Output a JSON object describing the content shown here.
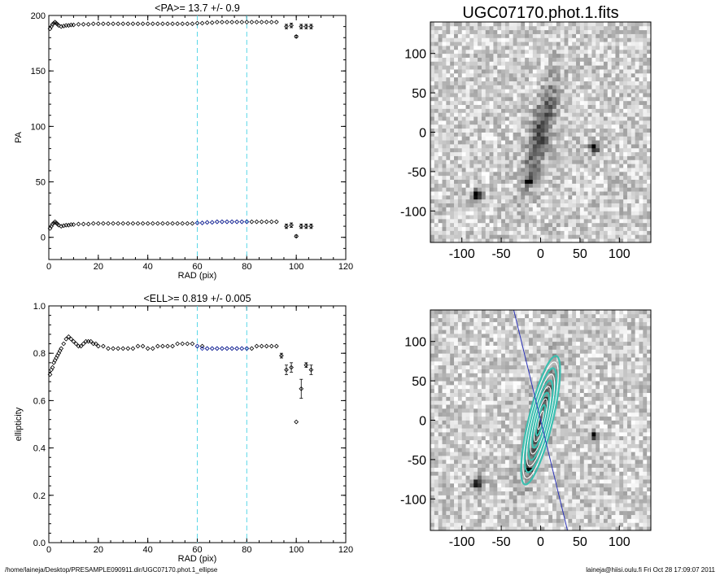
{
  "chart_data": [
    {
      "type": "scatter",
      "title": "<PA>=  13.7 +/-   0.9",
      "xlabel": "RAD (pix)",
      "ylabel": "PA",
      "xlim": [
        0,
        120
      ],
      "ylim": [
        -20,
        200
      ],
      "xticks": [
        0,
        20,
        40,
        60,
        80,
        100,
        120
      ],
      "yticks": [
        0,
        50,
        100,
        150,
        200
      ],
      "fit_range": [
        60,
        80
      ],
      "series": [
        {
          "color": "#000000",
          "x": [
            0.5,
            1,
            1.5,
            2,
            2.5,
            3,
            3.5,
            4,
            5,
            6,
            7,
            8,
            9,
            10,
            12,
            14,
            16,
            18,
            20,
            22,
            24,
            26,
            28,
            30,
            32,
            34,
            36,
            38,
            40,
            42,
            44,
            46,
            48,
            50,
            52,
            54,
            56,
            58,
            60,
            62,
            64,
            66,
            68,
            70,
            72,
            74,
            76,
            78,
            80,
            82,
            84,
            86,
            88,
            90,
            92
          ],
          "y": [
            8,
            10,
            12,
            13,
            14,
            13,
            12,
            11,
            10,
            10.5,
            11,
            11,
            11.5,
            11.5,
            12,
            12,
            12,
            12.5,
            12.5,
            12.5,
            12.5,
            12.5,
            12.5,
            12.5,
            12.5,
            12.5,
            12.5,
            12.5,
            12.5,
            12.5,
            12.5,
            12.5,
            12.5,
            12.5,
            12.5,
            12.5,
            12.5,
            12.5,
            13,
            13,
            13.5,
            13.5,
            14,
            14,
            14,
            14,
            14,
            14,
            14,
            14,
            14,
            14,
            14,
            14,
            14
          ]
        },
        {
          "color": "#000000",
          "x": [
            96,
            98,
            100,
            102,
            104,
            106
          ],
          "y": [
            10,
            11,
            1,
            10,
            10,
            10
          ],
          "err": [
            2,
            2,
            1,
            2,
            2,
            2
          ]
        },
        {
          "color": "#1a2bb0",
          "x": [
            60,
            62,
            64,
            66,
            68,
            70,
            72,
            74,
            76,
            78,
            80
          ],
          "y": [
            13,
            13,
            13.5,
            13.5,
            14,
            14,
            14,
            14,
            14,
            14,
            14
          ]
        },
        {
          "color": "#000000",
          "x": [
            0.5,
            1,
            1.5,
            2,
            2.5,
            3,
            3.5,
            4,
            5,
            6,
            7,
            8,
            9,
            10,
            12,
            14,
            16,
            18,
            20,
            22,
            24,
            26,
            28,
            30,
            32,
            34,
            36,
            38,
            40,
            42,
            44,
            46,
            48,
            50,
            52,
            54,
            56,
            58,
            60,
            62,
            64,
            66,
            68,
            70,
            72,
            74,
            76,
            78,
            80,
            82,
            84,
            86,
            88,
            90,
            92
          ],
          "y": [
            188,
            190,
            192,
            193,
            194,
            193,
            192,
            191,
            190,
            190.5,
            191,
            191,
            191.5,
            191.5,
            192,
            192,
            192,
            192.5,
            192.5,
            192.5,
            192.5,
            192.5,
            192.5,
            192.5,
            192.5,
            192.5,
            192.5,
            192.5,
            192.5,
            192.5,
            192.5,
            192.5,
            192.5,
            192.5,
            192.5,
            192.5,
            192.5,
            192.5,
            193,
            193,
            193.5,
            193.5,
            194,
            194,
            194,
            194,
            194,
            194,
            194,
            194,
            194,
            194,
            194,
            194,
            194
          ]
        },
        {
          "color": "#000000",
          "x": [
            96,
            98,
            100,
            102,
            104,
            106
          ],
          "y": [
            190,
            191,
            181,
            190,
            190,
            190
          ],
          "err": [
            2,
            2,
            1,
            2,
            2,
            2
          ]
        }
      ]
    },
    {
      "type": "scatter",
      "title": "<ELL>= 0.819 +/-  0.005",
      "xlabel": "RAD (pix)",
      "ylabel": "ellipticity",
      "xlim": [
        0,
        120
      ],
      "ylim": [
        0.0,
        1.0
      ],
      "xticks": [
        0,
        20,
        40,
        60,
        80,
        100,
        120
      ],
      "yticks": [
        0.0,
        0.2,
        0.4,
        0.6,
        0.8,
        1.0
      ],
      "ytick_labels": [
        "0.0",
        "0.2",
        "0.4",
        "0.6",
        "0.8",
        "1.0"
      ],
      "fit_range": [
        60,
        80
      ],
      "series": [
        {
          "color": "#000000",
          "x": [
            0.5,
            1,
            1.5,
            2,
            2.5,
            3,
            3.5,
            4,
            4.5,
            5,
            6,
            7,
            8,
            9,
            10,
            11,
            12,
            13,
            14,
            15,
            16,
            17,
            18,
            19,
            20,
            22,
            24,
            26,
            28,
            30,
            32,
            34,
            36,
            38,
            40,
            42,
            44,
            46,
            48,
            50,
            52,
            54,
            56,
            58,
            60,
            62,
            64,
            66,
            68,
            70,
            72,
            74,
            76,
            78,
            80,
            82,
            84,
            86,
            88,
            90,
            92
          ],
          "y": [
            0.71,
            0.73,
            0.74,
            0.76,
            0.77,
            0.78,
            0.79,
            0.8,
            0.81,
            0.82,
            0.84,
            0.86,
            0.87,
            0.86,
            0.85,
            0.84,
            0.83,
            0.83,
            0.84,
            0.85,
            0.85,
            0.85,
            0.84,
            0.84,
            0.83,
            0.83,
            0.82,
            0.82,
            0.82,
            0.82,
            0.82,
            0.82,
            0.83,
            0.83,
            0.82,
            0.82,
            0.83,
            0.83,
            0.83,
            0.83,
            0.84,
            0.84,
            0.84,
            0.84,
            0.83,
            0.83,
            0.82,
            0.82,
            0.82,
            0.82,
            0.82,
            0.82,
            0.82,
            0.82,
            0.82,
            0.82,
            0.83,
            0.83,
            0.83,
            0.83,
            0.83
          ]
        },
        {
          "color": "#000000",
          "x": [
            94,
            96,
            98,
            100,
            102,
            104,
            106
          ],
          "y": [
            0.79,
            0.73,
            0.74,
            0.51,
            0.65,
            0.75,
            0.73
          ],
          "err": [
            0.01,
            0.02,
            0.02,
            0.0,
            0.04,
            0.01,
            0.02
          ]
        },
        {
          "color": "#1a2bb0",
          "x": [
            60,
            62,
            64,
            66,
            68,
            70,
            72,
            74,
            76,
            78,
            80
          ],
          "y": [
            0.83,
            0.82,
            0.82,
            0.82,
            0.82,
            0.82,
            0.82,
            0.82,
            0.82,
            0.82,
            0.82
          ]
        }
      ]
    },
    {
      "type": "heatmap",
      "title": "UGC07170.phot.1.fits",
      "xlabel": "",
      "ylabel": "",
      "xlim": [
        -140,
        140
      ],
      "ylim": [
        -140,
        140
      ],
      "xticks": [
        -100,
        -50,
        0,
        50,
        100
      ],
      "yticks": [
        -100,
        -50,
        0,
        50,
        100
      ],
      "galaxy": {
        "pa_deg": 13.7,
        "ellipticity": 0.819,
        "major_radius": 90
      },
      "stars": [
        {
          "x": -80,
          "y": -80,
          "size": 5
        },
        {
          "x": 68,
          "y": -20,
          "size": 4
        },
        {
          "x": -15,
          "y": -62,
          "size": 3
        }
      ]
    },
    {
      "type": "heatmap",
      "title": "",
      "xlabel": "",
      "ylabel": "",
      "xlim": [
        -140,
        140
      ],
      "ylim": [
        -140,
        140
      ],
      "xticks": [
        -100,
        -50,
        0,
        50,
        100
      ],
      "yticks": [
        -100,
        -50,
        0,
        50,
        100
      ],
      "contour_radii": [
        12,
        20,
        28,
        36,
        44,
        52,
        60,
        68,
        76,
        84
      ],
      "pa_deg": 13.7,
      "ellipticity": 0.819
    }
  ],
  "footer": {
    "left": "/home/laineja/Desktop/PRESAMPLE090911.dir/UGC07170.phot.1_ellipse",
    "right": "laineja@hiisi.oulu.fi  Fri Oct 28 17:09:07 2011"
  },
  "colors": {
    "marker": "#000000",
    "fit": "#1a2bb0",
    "guide": "#5ad7e8",
    "contour_teal": "#3bbfb0",
    "contour_white": "#ffffff",
    "pa_line": "#2c33b8"
  }
}
